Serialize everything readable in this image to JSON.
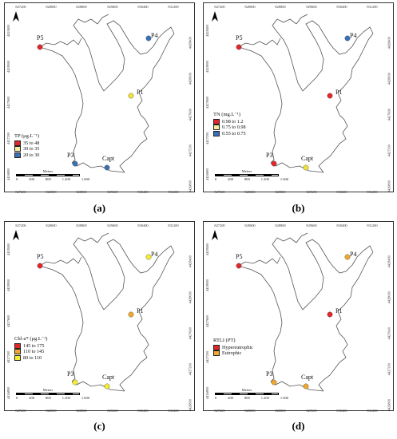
{
  "x_ticks": [
    "827200",
    "828000",
    "828800",
    "829600",
    "830400",
    "831200"
  ],
  "y_ticks": [
    "4426800",
    "4427200",
    "4427600",
    "4428000",
    "4428400"
  ],
  "site_labels": {
    "P5": "P5",
    "P4": "P4",
    "P1": "P1",
    "P3": "P3",
    "Capt": "Capt"
  },
  "scale": {
    "label": "Meters",
    "ticks": [
      "0",
      "400",
      "800",
      "1.200",
      "1.600"
    ]
  },
  "panels": [
    {
      "caption": "(a)",
      "legend_title": "TP (μg.L⁻¹)",
      "legend": [
        {
          "label": "35 to 48",
          "color": "#e3262a"
        },
        {
          "label": "30 to 35",
          "color": "#f5eda0"
        },
        {
          "label": "20 to 30",
          "color": "#3a70b8"
        }
      ],
      "site_colors": {
        "P5": "#e3262a",
        "P4": "#3a70b8",
        "P1": "#f0e23a",
        "P3": "#3a70b8",
        "Capt": "#3a70b8"
      }
    },
    {
      "caption": "(b)",
      "legend_title": "TN (mg.L⁻¹)",
      "legend": [
        {
          "label": "0.98 to 1.2",
          "color": "#e3262a"
        },
        {
          "label": "0.75 to 0.98",
          "color": "#f5eda0"
        },
        {
          "label": "0.55 to 0.75",
          "color": "#3a70b8"
        }
      ],
      "site_colors": {
        "P5": "#e3262a",
        "P4": "#3a70b8",
        "P1": "#e3262a",
        "P3": "#e3262a",
        "Capt": "#f0e23a"
      }
    },
    {
      "caption": "(c)",
      "legend_title": "Chl-a* (μg.L⁻¹)",
      "legend": [
        {
          "label": "145 to 175",
          "color": "#e3262a"
        },
        {
          "label": "110 to 145",
          "color": "#f0a830"
        },
        {
          "label": "80 to 110",
          "color": "#f5ef30"
        }
      ],
      "site_colors": {
        "P5": "#e3262a",
        "P4": "#f5ef30",
        "P1": "#f0a830",
        "P3": "#f5ef30",
        "Capt": "#f5ef30"
      }
    },
    {
      "caption": "(d)",
      "legend_title": "RTLI  (PT)",
      "legend": [
        {
          "label": "Hypereutrophic",
          "color": "#e3262a"
        },
        {
          "label": "Eutrophic",
          "color": "#f0a830"
        }
      ],
      "site_colors": {
        "P5": "#e3262a",
        "P4": "#f0a830",
        "P1": "#e3262a",
        "P3": "#f0a830",
        "Capt": "#f0a830"
      }
    }
  ]
}
